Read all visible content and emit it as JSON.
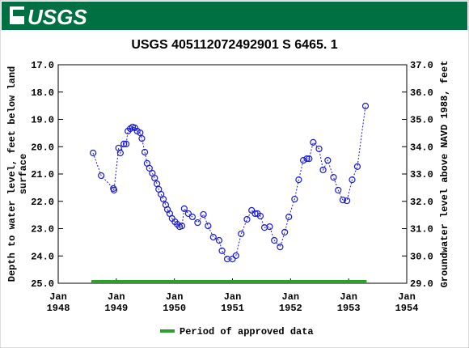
{
  "header": {
    "logo": "USGS"
  },
  "chart_data": {
    "type": "line",
    "title": "USGS 405112072492901 S  6465. 1",
    "ylabel": [
      "Depth to water level, feet below land",
      "surface"
    ],
    "y2label": "Groundwater level above NAVD 1988, feet",
    "xlim": [
      1948,
      1954
    ],
    "xticks": [
      {
        "value": 1948,
        "label": "Jan 1948"
      },
      {
        "value": 1949,
        "label": "Jan 1949"
      },
      {
        "value": 1950,
        "label": "Jan 1950"
      },
      {
        "value": 1951,
        "label": "Jan 1951"
      },
      {
        "value": 1952,
        "label": "Jan 1952"
      },
      {
        "value": 1953,
        "label": "Jan 1953"
      },
      {
        "value": 1954,
        "label": "Jan 1954"
      }
    ],
    "ylim": [
      17,
      25
    ],
    "yticks": [
      {
        "value": 17,
        "label": "17.0"
      },
      {
        "value": 18,
        "label": "18.0"
      },
      {
        "value": 19,
        "label": "19.0"
      },
      {
        "value": 20,
        "label": "20.0"
      },
      {
        "value": 21,
        "label": "21.0"
      },
      {
        "value": 22,
        "label": "22.0"
      },
      {
        "value": 23,
        "label": "23.0"
      },
      {
        "value": 24,
        "label": "24.0"
      },
      {
        "value": 25,
        "label": "25.0"
      }
    ],
    "y2lim": [
      37,
      29
    ],
    "y2ticks": [
      {
        "value": 37,
        "label": "37.0"
      },
      {
        "value": 36,
        "label": "36.0"
      },
      {
        "value": 35,
        "label": "35.0"
      },
      {
        "value": 34,
        "label": "34.0"
      },
      {
        "value": 33,
        "label": "33.0"
      },
      {
        "value": 32,
        "label": "32.0"
      },
      {
        "value": 31,
        "label": "31.0"
      },
      {
        "value": 30,
        "label": "30.0"
      },
      {
        "value": 29,
        "label": "29.0"
      }
    ],
    "series": [
      {
        "color": "#1a1adb",
        "x": [
          1948.6,
          1948.74,
          1948.95,
          1948.96,
          1949.04,
          1949.07,
          1949.13,
          1949.17,
          1949.2,
          1949.24,
          1949.28,
          1949.32,
          1949.36,
          1949.41,
          1949.44,
          1949.49,
          1949.53,
          1949.57,
          1949.62,
          1949.66,
          1949.7,
          1949.73,
          1949.77,
          1949.81,
          1949.85,
          1949.88,
          1949.92,
          1949.96,
          1950.01,
          1950.05,
          1950.09,
          1950.13,
          1950.17,
          1950.24,
          1950.31,
          1950.4,
          1950.5,
          1950.58,
          1950.67,
          1950.77,
          1950.82,
          1950.91,
          1951.0,
          1951.06,
          1951.15,
          1951.25,
          1951.33,
          1951.39,
          1951.43,
          1951.48,
          1951.55,
          1951.64,
          1951.72,
          1951.82,
          1951.9,
          1951.97,
          1952.07,
          1952.14,
          1952.22,
          1952.28,
          1952.32,
          1952.39,
          1952.49,
          1952.56,
          1952.64,
          1952.74,
          1952.82,
          1952.9,
          1952.97,
          1953.06,
          1953.15,
          1953.29
        ],
        "values": [
          20.23,
          21.06,
          21.53,
          21.59,
          20.05,
          20.23,
          19.9,
          19.9,
          19.43,
          19.34,
          19.28,
          19.31,
          19.43,
          19.49,
          19.7,
          20.2,
          20.61,
          20.79,
          20.97,
          21.15,
          21.36,
          21.56,
          21.74,
          21.92,
          22.13,
          22.3,
          22.45,
          22.63,
          22.75,
          22.84,
          22.93,
          22.9,
          22.27,
          22.45,
          22.57,
          22.78,
          22.48,
          22.9,
          23.31,
          23.43,
          23.81,
          24.11,
          24.11,
          23.99,
          23.19,
          22.66,
          22.33,
          22.45,
          22.45,
          22.54,
          22.96,
          22.93,
          23.43,
          23.67,
          23.13,
          22.57,
          21.92,
          21.21,
          20.5,
          20.44,
          20.44,
          19.84,
          20.08,
          20.85,
          20.5,
          21.12,
          21.59,
          21.95,
          21.98,
          21.21,
          20.73,
          18.51
        ]
      }
    ],
    "approved_period": {
      "name": "Period of approved data",
      "color": "#2ca02c",
      "x": [
        1948.57,
        1953.31
      ]
    }
  }
}
